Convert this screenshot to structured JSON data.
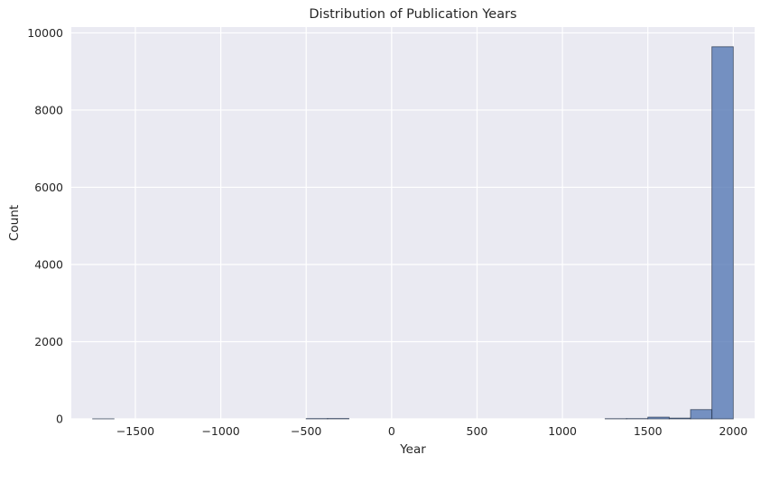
{
  "chart_data": {
    "type": "bar",
    "title": "Distribution of Publication Years",
    "xlabel": "Year",
    "ylabel": "Count",
    "xlim": [
      -1875,
      2125
    ],
    "ylim": [
      0,
      10150
    ],
    "x_ticks": [
      -1500,
      -1000,
      -500,
      0,
      500,
      1000,
      1500,
      2000
    ],
    "x_tick_labels": [
      "−1500",
      "−1000",
      "−500",
      "0",
      "500",
      "1000",
      "1500",
      "2000"
    ],
    "y_ticks": [
      0,
      2000,
      4000,
      6000,
      8000,
      10000
    ],
    "y_tick_labels": [
      "0",
      "2000",
      "4000",
      "6000",
      "8000",
      "10000"
    ],
    "grid": true,
    "bin_edges": [
      -1750,
      -1625,
      -1500,
      -1375,
      -1250,
      -1125,
      -1000,
      -875,
      -750,
      -625,
      -500,
      -375,
      -250,
      -125,
      0,
      125,
      250,
      375,
      500,
      625,
      750,
      875,
      1000,
      1125,
      1250,
      1375,
      1500,
      1625,
      1750,
      1875,
      2000
    ],
    "values": [
      2,
      0,
      0,
      0,
      0,
      0,
      0,
      0,
      0,
      0,
      8,
      10,
      0,
      0,
      0,
      0,
      0,
      0,
      0,
      0,
      0,
      0,
      0,
      0,
      6,
      8,
      45,
      20,
      240,
      9640
    ],
    "colors": {
      "bar_fill": "#4c72b0",
      "bar_edge": "#1f2d44",
      "plot_bg": "#eaeaf2",
      "grid": "#ffffff"
    }
  }
}
